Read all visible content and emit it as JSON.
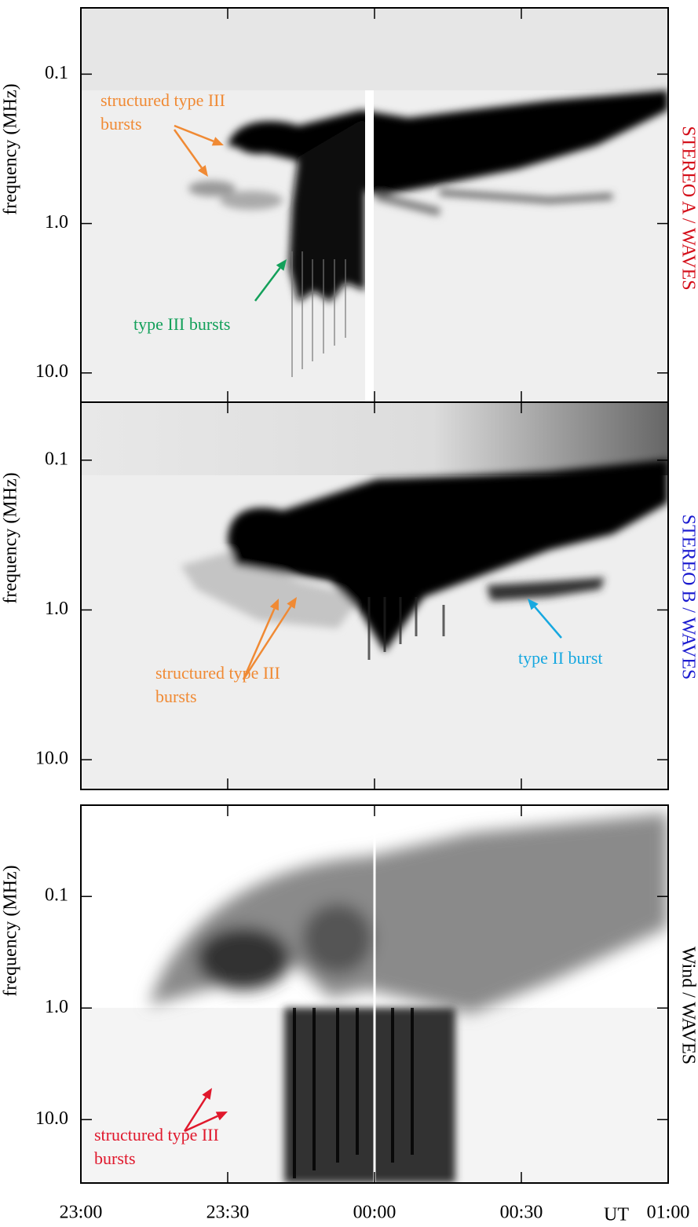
{
  "chart_data": [
    {
      "type": "spectrogram",
      "ylabel": "frequency (MHz)",
      "instrument": "STEREO A / WAVES",
      "instrument_color": "#d40f1a",
      "log_y": true,
      "ylim": [
        0.036,
        15.7
      ],
      "yticks": [
        {
          "value": 0.1,
          "label": "0.1"
        },
        {
          "value": 1,
          "label": "1.0"
        },
        {
          "value": 10,
          "label": "10.0"
        }
      ],
      "annotations": [
        {
          "text": [
            "structured type III",
            "bursts"
          ],
          "color": "#f08a34"
        },
        {
          "text": [
            "type III bursts"
          ],
          "color": "#13a05a"
        }
      ]
    },
    {
      "type": "spectrogram",
      "ylabel": "frequency (MHz)",
      "instrument": "STEREO B / WAVES",
      "instrument_color": "#1c1cd0",
      "log_y": true,
      "ylim": [
        0.041,
        15.8
      ],
      "yticks": [
        {
          "value": 0.1,
          "label": "0.1"
        },
        {
          "value": 1,
          "label": "1.0"
        },
        {
          "value": 10,
          "label": "10.0"
        }
      ],
      "annotations": [
        {
          "text": [
            "structured type III",
            "bursts"
          ],
          "color": "#f08a34"
        },
        {
          "text": [
            "type II burst"
          ],
          "color": "#17a8e0"
        }
      ]
    },
    {
      "type": "spectrogram",
      "ylabel": "frequency (MHz)",
      "instrument": "Wind / WAVES",
      "instrument_color": "#000000",
      "log_y": true,
      "ylim": [
        0.0152,
        37
      ],
      "yticks": [
        {
          "value": 0.1,
          "label": "0.1"
        },
        {
          "value": 1,
          "label": "1.0"
        },
        {
          "value": 10,
          "label": "10.0"
        }
      ],
      "xlabel": "UT",
      "xlim": [
        0,
        120
      ],
      "xticks": [
        {
          "value": 0,
          "label": "23:00"
        },
        {
          "value": 30,
          "label": "23:30"
        },
        {
          "value": 60,
          "label": "00:00"
        },
        {
          "value": 90,
          "label": "00:30"
        },
        {
          "value": 120,
          "label": "01:00"
        }
      ],
      "annotations": [
        {
          "text": [
            "structured type III",
            "bursts"
          ],
          "color": "#e0182c"
        }
      ]
    }
  ]
}
